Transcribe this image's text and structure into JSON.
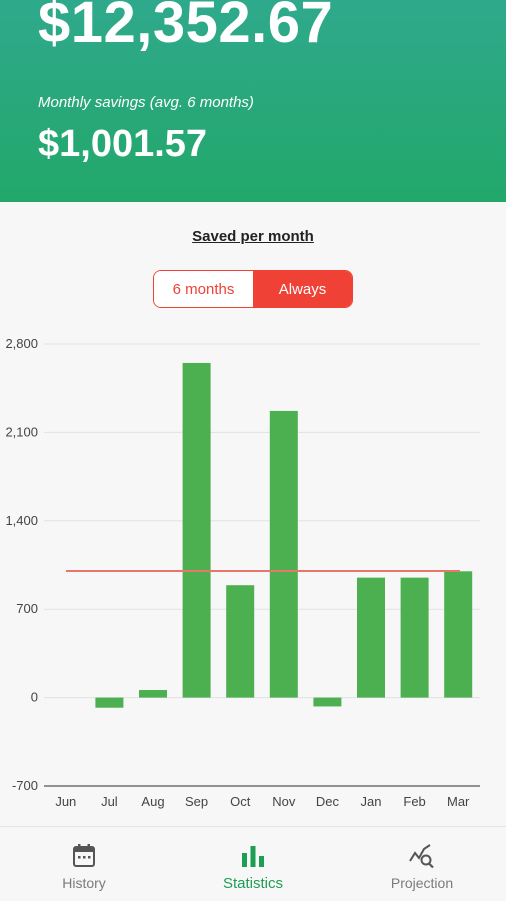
{
  "header": {
    "total": "$12,352.67",
    "monthly_label": "Monthly savings (avg. 6 months)",
    "monthly_value": "$1,001.57"
  },
  "section_title": "Saved per month",
  "toggle": {
    "options": [
      "6 months",
      "Always"
    ],
    "selected": "Always"
  },
  "chart_data": {
    "type": "bar",
    "title": "",
    "xlabel": "",
    "ylabel": "",
    "categories": [
      "Jun",
      "Jul",
      "Aug",
      "Sep",
      "Oct",
      "Nov",
      "Dec",
      "Jan",
      "Feb",
      "Mar"
    ],
    "values": [
      0,
      -80,
      60,
      2650,
      890,
      2270,
      -70,
      950,
      950,
      1000
    ],
    "average_line": 1002,
    "ylim": [
      -700,
      2800
    ],
    "yticks": [
      -700,
      0,
      700,
      1400,
      2100,
      2800
    ],
    "ytick_labels": [
      "-700",
      "0",
      "700",
      "1,400",
      "2,100",
      "2,800"
    ],
    "grid": true,
    "bar_color": "#4caf50",
    "average_color": "#e8766b"
  },
  "nav": {
    "items": [
      {
        "label": "History",
        "icon": "calendar-icon"
      },
      {
        "label": "Statistics",
        "icon": "bar-chart-icon"
      },
      {
        "label": "Projection",
        "icon": "trend-search-icon"
      }
    ],
    "active": "Statistics",
    "active_color": "#1d9e55"
  }
}
